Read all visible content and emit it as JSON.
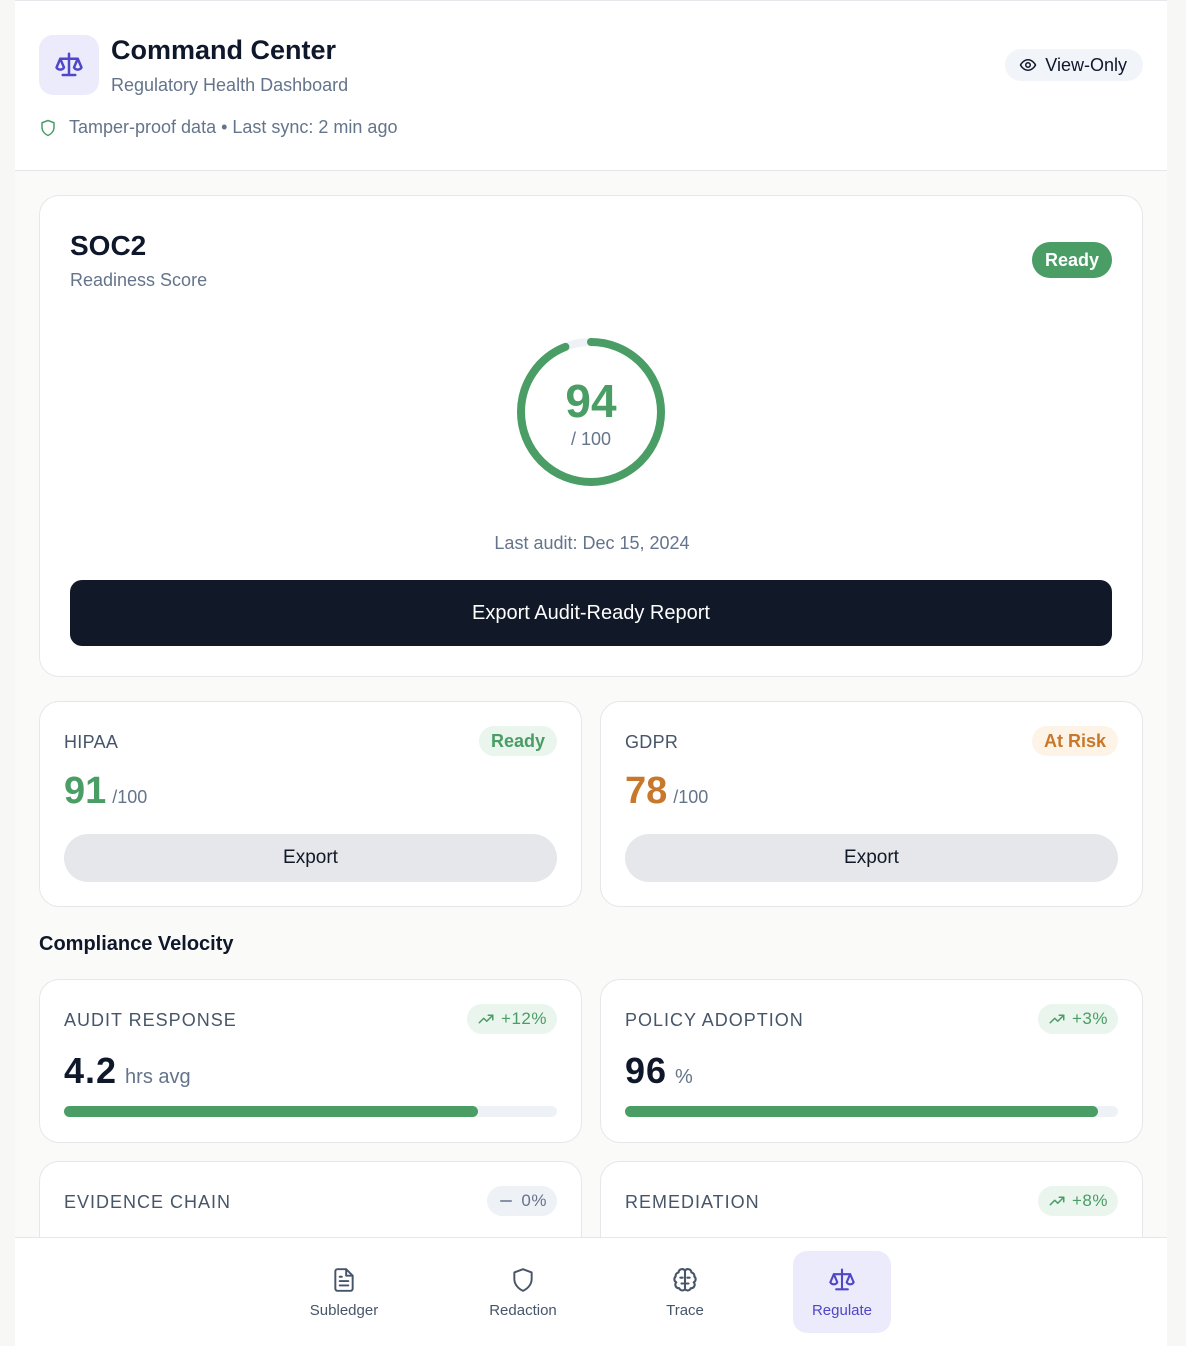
{
  "header": {
    "title": "Command Center",
    "subtitle": "Regulatory Health Dashboard",
    "sync_text": "Tamper-proof data • Last sync: 2 min ago",
    "view_only_label": "View-Only",
    "logo_icon": "scale-icon"
  },
  "soc2": {
    "title": "SOC2",
    "subtitle": "Readiness Score",
    "status": "Ready",
    "score": "94",
    "score_max": "/ 100",
    "score_value": 94,
    "last_audit": "Last audit: Dec 15, 2024",
    "export_label": "Export Audit-Ready Report"
  },
  "frameworks": [
    {
      "name": "HIPAA",
      "status": "Ready",
      "score": "91",
      "max": "/100",
      "export_label": "Export"
    },
    {
      "name": "GDPR",
      "status": "At Risk",
      "score": "78",
      "max": "/100",
      "export_label": "Export"
    }
  ],
  "velocity": {
    "title": "Compliance Velocity",
    "metrics": [
      {
        "name": "AUDIT RESPONSE",
        "trend": "+12%",
        "value": "4.2",
        "unit": "hrs avg",
        "progress": 0.84
      },
      {
        "name": "POLICY ADOPTION",
        "trend": "+3%",
        "value": "96",
        "unit": "%",
        "progress": 0.96
      },
      {
        "name": "EVIDENCE CHAIN",
        "trend": "0%"
      },
      {
        "name": "REMEDIATION",
        "trend": "+8%"
      }
    ]
  },
  "nav": [
    {
      "label": "Subledger",
      "icon": "document-icon"
    },
    {
      "label": "Redaction",
      "icon": "shield-icon"
    },
    {
      "label": "Trace",
      "icon": "brain-icon"
    },
    {
      "label": "Regulate",
      "icon": "scale-icon"
    }
  ],
  "colors": {
    "accent": "#4f46c8",
    "success": "#4a9d64",
    "warning": "#c8782b",
    "dark": "#111827"
  }
}
